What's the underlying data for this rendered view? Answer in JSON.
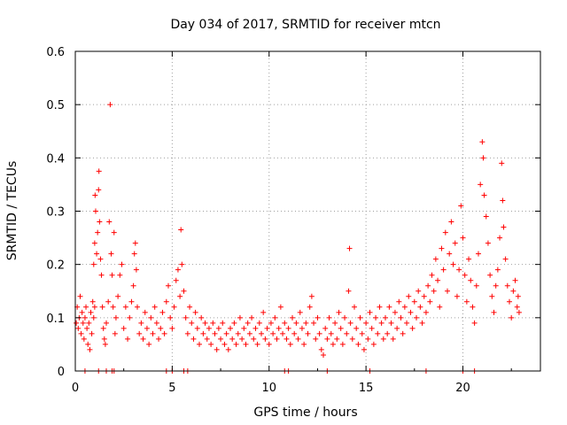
{
  "chart_data": {
    "type": "scatter",
    "title": "Day 034 of 2017, SRMTID for receiver mtcn",
    "xlabel": "GPS time / hours",
    "ylabel": "SRMTID / TECUs",
    "xlim": [
      0,
      24
    ],
    "ylim": [
      0,
      0.6
    ],
    "x_ticks": [
      0,
      5,
      10,
      15,
      20
    ],
    "x_tick_labels": [
      "0",
      "5",
      "10",
      "15",
      "20"
    ],
    "y_ticks": [
      0,
      0.1,
      0.2,
      0.3,
      0.4,
      0.5,
      0.6
    ],
    "y_tick_labels": [
      "0",
      "0.1",
      "0.2",
      "0.3",
      "0.4",
      "0.5",
      "0.6"
    ],
    "grid": true,
    "marker": "+",
    "color": "#ff0000",
    "series": [
      {
        "name": "SRMTID",
        "points": [
          [
            0.05,
            0.09
          ],
          [
            0.1,
            0.12
          ],
          [
            0.15,
            0.08
          ],
          [
            0.2,
            0.1
          ],
          [
            0.25,
            0.14
          ],
          [
            0.3,
            0.07
          ],
          [
            0.35,
            0.11
          ],
          [
            0.4,
            0.09
          ],
          [
            0.45,
            0.06
          ],
          [
            0.5,
            0.1
          ],
          [
            0.55,
            0.12
          ],
          [
            0.6,
            0.08
          ],
          [
            0.65,
            0.05
          ],
          [
            0.7,
            0.09
          ],
          [
            0.75,
            0.04
          ],
          [
            0.8,
            0.11
          ],
          [
            0.85,
            0.07
          ],
          [
            0.9,
            0.13
          ],
          [
            0.95,
            0.1
          ],
          [
            1.0,
            0.12
          ],
          [
            0.95,
            0.2
          ],
          [
            1.0,
            0.24
          ],
          [
            1.02,
            0.33
          ],
          [
            1.05,
            0.3
          ],
          [
            1.1,
            0.22
          ],
          [
            1.15,
            0.26
          ],
          [
            1.2,
            0.34
          ],
          [
            1.22,
            0.375
          ],
          [
            1.25,
            0.28
          ],
          [
            1.3,
            0.21
          ],
          [
            1.35,
            0.18
          ],
          [
            1.4,
            0.12
          ],
          [
            1.45,
            0.08
          ],
          [
            1.5,
            0.06
          ],
          [
            1.55,
            0.05
          ],
          [
            1.6,
            0.09
          ],
          [
            1.7,
            0.13
          ],
          [
            1.75,
            0.28
          ],
          [
            1.8,
            0.5
          ],
          [
            1.85,
            0.22
          ],
          [
            1.9,
            0.18
          ],
          [
            1.95,
            0.12
          ],
          [
            2.0,
            0.26
          ],
          [
            2.05,
            0.07
          ],
          [
            2.1,
            0.1
          ],
          [
            2.2,
            0.14
          ],
          [
            2.3,
            0.18
          ],
          [
            2.4,
            0.2
          ],
          [
            2.5,
            0.08
          ],
          [
            2.6,
            0.12
          ],
          [
            2.7,
            0.06
          ],
          [
            2.8,
            0.1
          ],
          [
            2.9,
            0.13
          ],
          [
            3.0,
            0.16
          ],
          [
            3.05,
            0.22
          ],
          [
            3.1,
            0.24
          ],
          [
            3.15,
            0.19
          ],
          [
            3.2,
            0.12
          ],
          [
            3.3,
            0.07
          ],
          [
            3.4,
            0.09
          ],
          [
            3.5,
            0.06
          ],
          [
            3.6,
            0.11
          ],
          [
            3.7,
            0.08
          ],
          [
            3.8,
            0.05
          ],
          [
            3.9,
            0.1
          ],
          [
            4.0,
            0.07
          ],
          [
            4.1,
            0.12
          ],
          [
            4.2,
            0.09
          ],
          [
            4.3,
            0.06
          ],
          [
            4.4,
            0.08
          ],
          [
            4.5,
            0.11
          ],
          [
            4.6,
            0.07
          ],
          [
            4.7,
            0.13
          ],
          [
            4.8,
            0.16
          ],
          [
            4.9,
            0.1
          ],
          [
            5.0,
            0.08
          ],
          [
            5.1,
            0.12
          ],
          [
            5.2,
            0.17
          ],
          [
            5.3,
            0.19
          ],
          [
            5.4,
            0.14
          ],
          [
            5.45,
            0.265
          ],
          [
            5.5,
            0.2
          ],
          [
            5.6,
            0.15
          ],
          [
            5.7,
            0.1
          ],
          [
            5.8,
            0.07
          ],
          [
            5.9,
            0.12
          ],
          [
            6.0,
            0.09
          ],
          [
            6.1,
            0.06
          ],
          [
            6.2,
            0.11
          ],
          [
            6.3,
            0.08
          ],
          [
            6.4,
            0.05
          ],
          [
            6.5,
            0.1
          ],
          [
            6.6,
            0.07
          ],
          [
            6.7,
            0.09
          ],
          [
            6.8,
            0.06
          ],
          [
            6.9,
            0.08
          ],
          [
            7.0,
            0.05
          ],
          [
            7.1,
            0.09
          ],
          [
            7.2,
            0.07
          ],
          [
            7.3,
            0.04
          ],
          [
            7.4,
            0.08
          ],
          [
            7.5,
            0.06
          ],
          [
            7.6,
            0.09
          ],
          [
            7.7,
            0.05
          ],
          [
            7.8,
            0.07
          ],
          [
            7.9,
            0.04
          ],
          [
            8.0,
            0.08
          ],
          [
            8.1,
            0.06
          ],
          [
            8.2,
            0.09
          ],
          [
            8.3,
            0.05
          ],
          [
            8.4,
            0.07
          ],
          [
            8.5,
            0.1
          ],
          [
            8.6,
            0.06
          ],
          [
            8.7,
            0.08
          ],
          [
            8.8,
            0.05
          ],
          [
            8.9,
            0.09
          ],
          [
            9.0,
            0.07
          ],
          [
            9.1,
            0.1
          ],
          [
            9.2,
            0.06
          ],
          [
            9.3,
            0.08
          ],
          [
            9.4,
            0.05
          ],
          [
            9.5,
            0.09
          ],
          [
            9.6,
            0.07
          ],
          [
            9.7,
            0.11
          ],
          [
            9.8,
            0.06
          ],
          [
            9.9,
            0.08
          ],
          [
            10.0,
            0.05
          ],
          [
            10.1,
            0.09
          ],
          [
            10.2,
            0.07
          ],
          [
            10.3,
            0.1
          ],
          [
            10.4,
            0.06
          ],
          [
            10.5,
            0.08
          ],
          [
            10.6,
            0.12
          ],
          [
            10.7,
            0.07
          ],
          [
            10.8,
            0.09
          ],
          [
            10.9,
            0.06
          ],
          [
            11.0,
            0.08
          ],
          [
            11.1,
            0.05
          ],
          [
            11.2,
            0.1
          ],
          [
            11.3,
            0.07
          ],
          [
            11.4,
            0.09
          ],
          [
            11.5,
            0.06
          ],
          [
            11.6,
            0.11
          ],
          [
            11.7,
            0.08
          ],
          [
            11.8,
            0.05
          ],
          [
            11.9,
            0.09
          ],
          [
            12.0,
            0.07
          ],
          [
            12.1,
            0.12
          ],
          [
            12.2,
            0.14
          ],
          [
            12.3,
            0.09
          ],
          [
            12.4,
            0.06
          ],
          [
            12.5,
            0.1
          ],
          [
            12.6,
            0.07
          ],
          [
            12.7,
            0.04
          ],
          [
            12.8,
            0.03
          ],
          [
            12.9,
            0.08
          ],
          [
            13.0,
            0.06
          ],
          [
            13.1,
            0.1
          ],
          [
            13.2,
            0.07
          ],
          [
            13.3,
            0.05
          ],
          [
            13.4,
            0.09
          ],
          [
            13.5,
            0.06
          ],
          [
            13.6,
            0.11
          ],
          [
            13.7,
            0.08
          ],
          [
            13.8,
            0.05
          ],
          [
            13.9,
            0.1
          ],
          [
            14.0,
            0.07
          ],
          [
            14.1,
            0.15
          ],
          [
            14.15,
            0.23
          ],
          [
            14.2,
            0.09
          ],
          [
            14.3,
            0.06
          ],
          [
            14.4,
            0.12
          ],
          [
            14.5,
            0.08
          ],
          [
            14.6,
            0.05
          ],
          [
            14.7,
            0.1
          ],
          [
            14.8,
            0.07
          ],
          [
            14.9,
            0.04
          ],
          [
            15.0,
            0.09
          ],
          [
            15.1,
            0.06
          ],
          [
            15.2,
            0.11
          ],
          [
            15.3,
            0.08
          ],
          [
            15.4,
            0.05
          ],
          [
            15.5,
            0.1
          ],
          [
            15.6,
            0.07
          ],
          [
            15.7,
            0.12
          ],
          [
            15.8,
            0.09
          ],
          [
            15.9,
            0.06
          ],
          [
            16.0,
            0.1
          ],
          [
            16.1,
            0.07
          ],
          [
            16.2,
            0.12
          ],
          [
            16.3,
            0.09
          ],
          [
            16.4,
            0.06
          ],
          [
            16.5,
            0.11
          ],
          [
            16.6,
            0.08
          ],
          [
            16.7,
            0.13
          ],
          [
            16.8,
            0.1
          ],
          [
            16.9,
            0.07
          ],
          [
            17.0,
            0.12
          ],
          [
            17.1,
            0.09
          ],
          [
            17.2,
            0.14
          ],
          [
            17.3,
            0.11
          ],
          [
            17.4,
            0.08
          ],
          [
            17.5,
            0.13
          ],
          [
            17.6,
            0.1
          ],
          [
            17.7,
            0.15
          ],
          [
            17.8,
            0.12
          ],
          [
            17.9,
            0.09
          ],
          [
            18.0,
            0.14
          ],
          [
            18.1,
            0.11
          ],
          [
            18.2,
            0.16
          ],
          [
            18.3,
            0.13
          ],
          [
            18.4,
            0.18
          ],
          [
            18.5,
            0.15
          ],
          [
            18.6,
            0.21
          ],
          [
            18.7,
            0.17
          ],
          [
            18.8,
            0.12
          ],
          [
            18.9,
            0.23
          ],
          [
            19.0,
            0.19
          ],
          [
            19.1,
            0.26
          ],
          [
            19.2,
            0.15
          ],
          [
            19.3,
            0.22
          ],
          [
            19.4,
            0.28
          ],
          [
            19.5,
            0.2
          ],
          [
            19.6,
            0.24
          ],
          [
            19.7,
            0.14
          ],
          [
            19.8,
            0.19
          ],
          [
            19.9,
            0.31
          ],
          [
            20.0,
            0.25
          ],
          [
            20.1,
            0.18
          ],
          [
            20.2,
            0.13
          ],
          [
            20.3,
            0.21
          ],
          [
            20.4,
            0.17
          ],
          [
            20.5,
            0.12
          ],
          [
            20.6,
            0.09
          ],
          [
            20.7,
            0.16
          ],
          [
            20.8,
            0.22
          ],
          [
            20.9,
            0.35
          ],
          [
            21.0,
            0.43
          ],
          [
            21.05,
            0.4
          ],
          [
            21.1,
            0.33
          ],
          [
            21.2,
            0.29
          ],
          [
            21.3,
            0.24
          ],
          [
            21.4,
            0.18
          ],
          [
            21.5,
            0.14
          ],
          [
            21.6,
            0.11
          ],
          [
            21.7,
            0.16
          ],
          [
            21.8,
            0.19
          ],
          [
            21.9,
            0.25
          ],
          [
            22.0,
            0.39
          ],
          [
            22.05,
            0.32
          ],
          [
            22.1,
            0.27
          ],
          [
            22.2,
            0.21
          ],
          [
            22.3,
            0.16
          ],
          [
            22.4,
            0.13
          ],
          [
            22.5,
            0.1
          ],
          [
            22.6,
            0.15
          ],
          [
            22.7,
            0.17
          ],
          [
            22.8,
            0.12
          ],
          [
            22.85,
            0.14
          ],
          [
            22.9,
            0.11
          ],
          [
            0.5,
            0.0
          ],
          [
            1.2,
            0.0
          ],
          [
            1.6,
            0.0
          ],
          [
            1.9,
            0.0
          ],
          [
            2.0,
            0.0
          ],
          [
            4.7,
            0.0
          ],
          [
            5.0,
            0.0
          ],
          [
            5.6,
            0.0
          ],
          [
            5.8,
            0.0
          ],
          [
            10.8,
            0.0
          ],
          [
            11.0,
            0.0
          ],
          [
            13.0,
            0.0
          ],
          [
            15.2,
            0.0
          ],
          [
            18.1,
            0.0
          ],
          [
            20.0,
            0.0
          ],
          [
            20.6,
            0.0
          ]
        ]
      }
    ]
  }
}
